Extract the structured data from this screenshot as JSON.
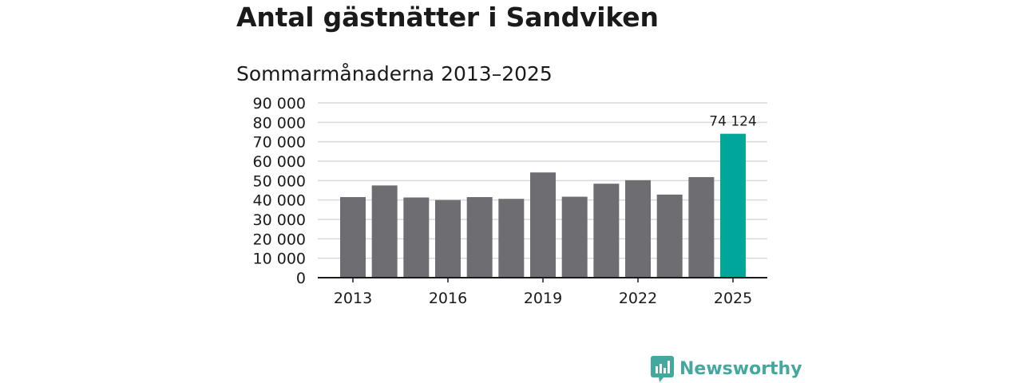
{
  "header": {
    "title": "Antal gästnätter i Sandviken",
    "subtitle": "Sommarmånaderna 2013–2025"
  },
  "chart_data": {
    "type": "bar",
    "categories": [
      "2013",
      "2014",
      "2015",
      "2016",
      "2017",
      "2018",
      "2019",
      "2020",
      "2021",
      "2022",
      "2023",
      "2024",
      "2025"
    ],
    "x_tick_labels": [
      "2013",
      "2016",
      "2019",
      "2022",
      "2025"
    ],
    "values": [
      41500,
      47500,
      41300,
      40000,
      41500,
      40600,
      54200,
      41700,
      48400,
      50200,
      42800,
      51800,
      74124
    ],
    "y_ticks": [
      0,
      10000,
      20000,
      30000,
      40000,
      50000,
      60000,
      70000,
      80000,
      90000
    ],
    "y_tick_labels": [
      "0",
      "10 000",
      "20 000",
      "30 000",
      "40 000",
      "50 000",
      "60 000",
      "70 000",
      "80 000",
      "90 000"
    ],
    "ylim": [
      0,
      90000
    ],
    "highlight_index": 12,
    "data_label": {
      "index": 12,
      "text": "74 124"
    },
    "grid": true,
    "colors": {
      "bar": "#6e6d72",
      "highlight": "#00a69a",
      "grid": "#d9d9d9",
      "axis": "#1a1a1a"
    }
  },
  "brand": {
    "name": "Newsworthy",
    "icon": "newsworthy-logo-icon",
    "color": "#44a89f"
  }
}
